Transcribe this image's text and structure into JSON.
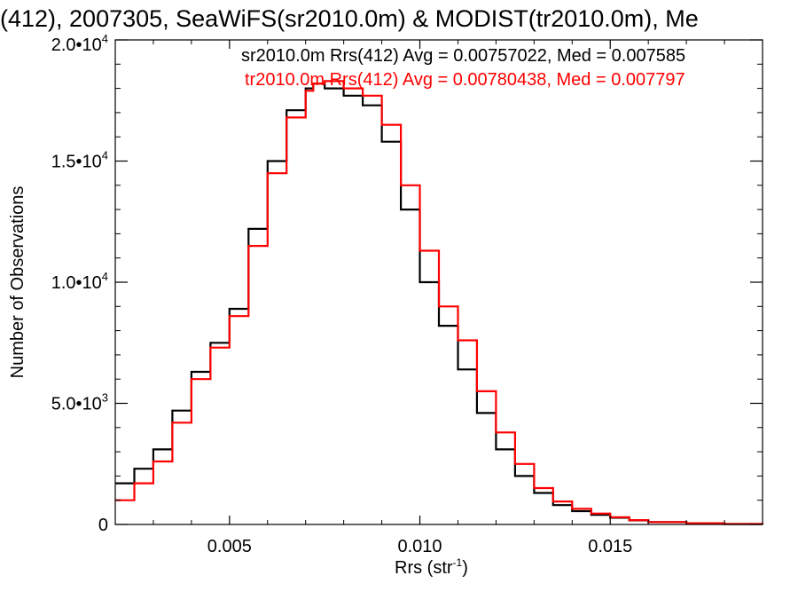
{
  "chart_data": {
    "type": "line",
    "title": "(412), 2007305, SeaWiFS(sr2010.0m) & MODIST(tr2010.0m), Me",
    "xlabel": {
      "base": "Rrs (str",
      "sup": "-1",
      "close": ")"
    },
    "ylabel": "Number of Observations",
    "xlim": [
      0.002,
      0.019
    ],
    "ylim": [
      0,
      20000
    ],
    "grid": false,
    "x_ticks": [
      {
        "value": 0.005,
        "label": "0.005"
      },
      {
        "value": 0.01,
        "label": "0.010"
      },
      {
        "value": 0.015,
        "label": "0.015"
      }
    ],
    "y_ticks": [
      {
        "value": 0,
        "label": "0",
        "sup": ""
      },
      {
        "value": 5000,
        "label": "5.0•10",
        "sup": "3"
      },
      {
        "value": 10000,
        "label": "1.0•10",
        "sup": "4"
      },
      {
        "value": 15000,
        "label": "1.5•10",
        "sup": "4"
      },
      {
        "value": 20000,
        "label": "2.0•10",
        "sup": "4"
      }
    ],
    "legend_placement": "top-right",
    "series": [
      {
        "name": "sr2010.0m Rrs(412) Avg = 0.00757022, Med = 0.007585",
        "color": "#000000",
        "x": [
          0.002,
          0.0025,
          0.003,
          0.0035,
          0.004,
          0.0045,
          0.005,
          0.0055,
          0.006,
          0.0065,
          0.007,
          0.0072,
          0.0075,
          0.008,
          0.0085,
          0.009,
          0.0095,
          0.01,
          0.0105,
          0.011,
          0.0115,
          0.012,
          0.0125,
          0.013,
          0.0135,
          0.014,
          0.0145,
          0.015,
          0.0155,
          0.016,
          0.017,
          0.018,
          0.019
        ],
        "y": [
          1700,
          2300,
          3100,
          4700,
          6300,
          7500,
          8900,
          12200,
          15000,
          17100,
          18000,
          18200,
          18000,
          17700,
          17300,
          15800,
          13000,
          10000,
          8200,
          6400,
          4600,
          3100,
          2000,
          1300,
          800,
          550,
          400,
          280,
          170,
          100,
          50,
          20,
          10
        ]
      },
      {
        "name": "tr2010.0m Rrs(412) Avg = 0.00780438, Med = 0.007797",
        "color": "#ff0000",
        "x": [
          0.002,
          0.0025,
          0.003,
          0.0035,
          0.004,
          0.0045,
          0.005,
          0.0055,
          0.006,
          0.0065,
          0.007,
          0.0072,
          0.0075,
          0.008,
          0.0085,
          0.009,
          0.0095,
          0.01,
          0.0105,
          0.011,
          0.0115,
          0.012,
          0.0125,
          0.013,
          0.0135,
          0.014,
          0.0145,
          0.015,
          0.0155,
          0.016,
          0.017,
          0.018,
          0.019
        ],
        "y": [
          1000,
          1700,
          2600,
          4200,
          6000,
          7300,
          8600,
          11500,
          14500,
          16800,
          17900,
          18200,
          18300,
          18000,
          17700,
          16500,
          14000,
          11300,
          9000,
          7600,
          5500,
          3800,
          2500,
          1500,
          950,
          650,
          450,
          300,
          180,
          100,
          50,
          20,
          10
        ]
      }
    ]
  }
}
